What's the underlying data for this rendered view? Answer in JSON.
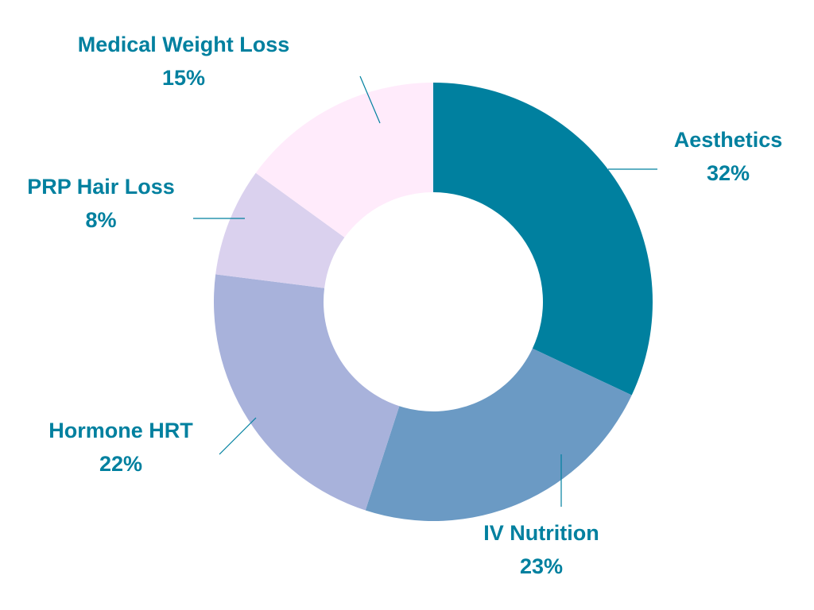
{
  "chart_data": {
    "type": "pie",
    "donut": true,
    "title": "",
    "categories": [
      "Aesthetics",
      "IV Nutrition",
      "Hormone HRT",
      "PRP Hair Loss",
      "Medical Weight Loss"
    ],
    "values": [
      32,
      23,
      22,
      8,
      15
    ],
    "value_labels": [
      "32%",
      "23%",
      "22%",
      "8%",
      "15%"
    ],
    "colors": [
      "#00809F",
      "#6B9AC4",
      "#A8B2DB",
      "#DAD1EE",
      "#FFEBFB"
    ],
    "start": "12 o'clock",
    "direction": "clockwise",
    "label_color": "#00809F",
    "leader_color": "#00809F",
    "legend": "none"
  }
}
